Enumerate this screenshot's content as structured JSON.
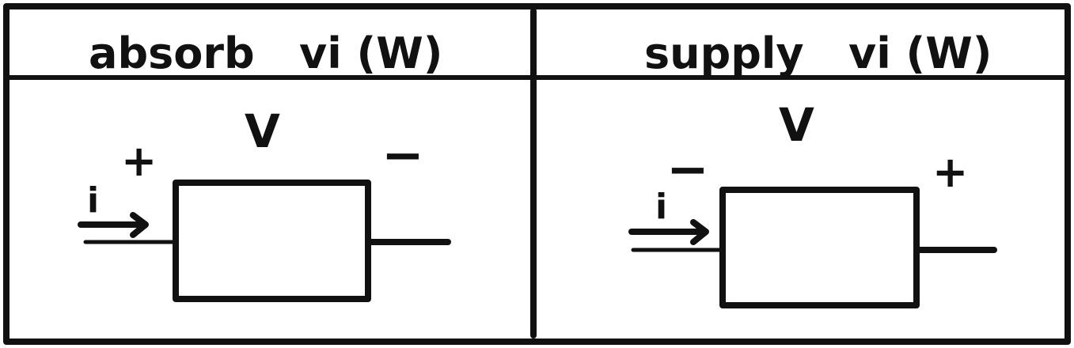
{
  "left_panel": {
    "header": "absorb   vi (W)",
    "voltage_label": "V",
    "left_terminal_sign": "+",
    "right_terminal_sign": "−",
    "current_label": "i"
  },
  "right_panel": {
    "header": "supply   vi (W)",
    "voltage_label": "V",
    "left_terminal_sign": "−",
    "right_terminal_sign": "+",
    "current_label": "i"
  },
  "colors": {
    "ink": "#111111",
    "background": "#ffffff"
  }
}
